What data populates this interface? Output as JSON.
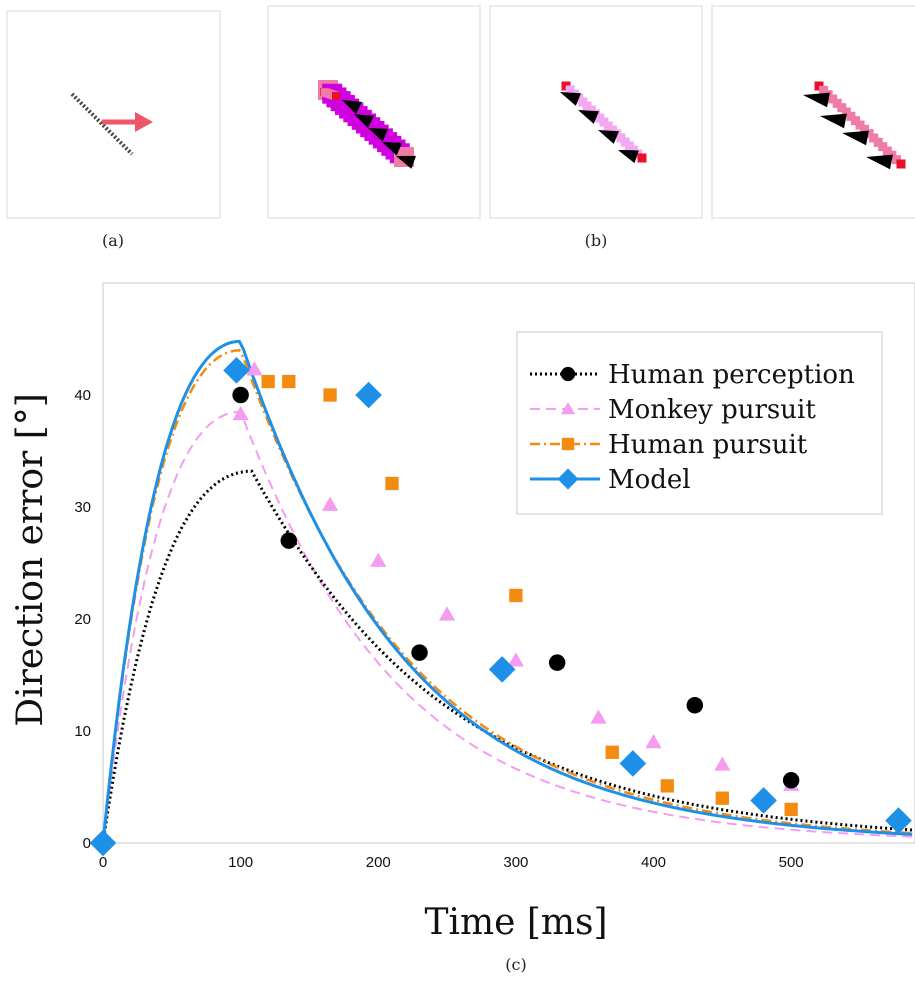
{
  "captions": {
    "a": "(a)",
    "b": "(b)",
    "c": "(c)"
  },
  "colors": {
    "human_perception": "#000000",
    "monkey_pursuit": "#f49cf0",
    "human_pursuit": "#f38b10",
    "model": "#1e90e8",
    "arrow": "#f0566a",
    "magenta": "#d000e0",
    "pink_light": "#f5a8f2",
    "pink": "#f07aa8",
    "red_end": "#e8102a"
  },
  "chart_data": {
    "type": "line",
    "xlabel": "Time [ms]",
    "ylabel": "Direction error [°]",
    "xlim": [
      0,
      590
    ],
    "ylim": [
      0,
      50
    ],
    "xticks": [
      "0",
      "100",
      "200",
      "300",
      "400",
      "500"
    ],
    "yticks": [
      "0",
      "10",
      "20",
      "30",
      "40"
    ],
    "grid": false,
    "legend": "top-right",
    "series": [
      {
        "name": "Human perception",
        "marker": "circle",
        "line": "dotted",
        "points": [
          [
            0,
            0
          ],
          [
            100,
            40
          ],
          [
            135,
            27
          ],
          [
            230,
            17
          ],
          [
            330,
            16.1
          ],
          [
            430,
            12.3
          ],
          [
            500,
            5.6
          ]
        ],
        "fit": {
          "amplitude": 33.2,
          "peak": 108,
          "tail": 150
        }
      },
      {
        "name": "Monkey pursuit",
        "marker": "triangle",
        "line": "dashed",
        "points": [
          [
            100,
            38.3
          ],
          [
            110,
            42.3
          ],
          [
            165,
            30.2
          ],
          [
            200,
            25.2
          ],
          [
            250,
            20.4
          ],
          [
            300,
            16.3
          ],
          [
            360,
            11.2
          ],
          [
            400,
            9
          ],
          [
            450,
            7
          ],
          [
            500,
            5.2
          ]
        ],
        "fit": {
          "amplitude": 38.5,
          "peak": 100,
          "tail": 120
        }
      },
      {
        "name": "Human pursuit",
        "marker": "square",
        "line": "dashdot",
        "points": [
          [
            120,
            41.2
          ],
          [
            135,
            41.2
          ],
          [
            165,
            40
          ],
          [
            210,
            32.1
          ],
          [
            300,
            22.1
          ],
          [
            370,
            8.1
          ],
          [
            410,
            5.1
          ],
          [
            450,
            4
          ],
          [
            500,
            3
          ]
        ],
        "fit": {
          "amplitude": 44,
          "peak": 100,
          "tail": 130
        }
      },
      {
        "name": "Model",
        "marker": "diamond",
        "line": "solid",
        "points": [
          [
            0,
            0
          ],
          [
            97,
            42.2
          ],
          [
            193,
            40
          ],
          [
            290,
            15.5
          ],
          [
            385,
            7.1
          ],
          [
            480,
            3.8
          ],
          [
            578,
            2
          ]
        ],
        "fit": {
          "amplitude": 44.8,
          "peak": 100,
          "tail": 125
        }
      }
    ]
  }
}
